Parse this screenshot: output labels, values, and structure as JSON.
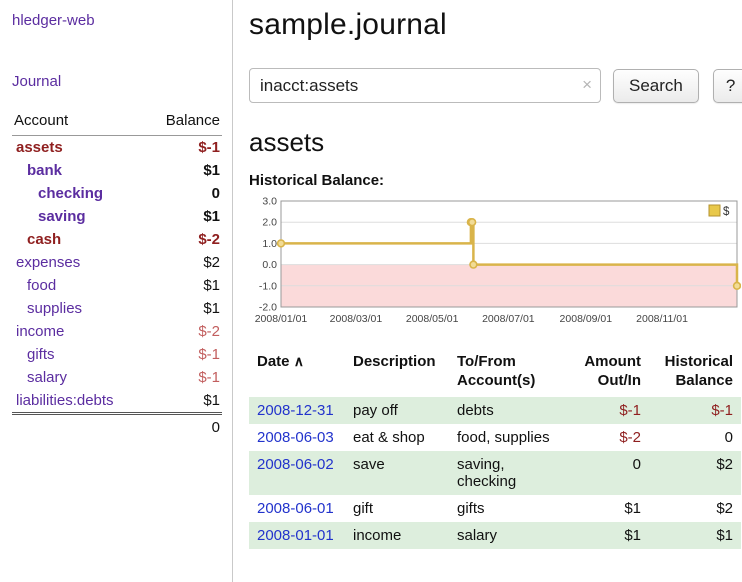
{
  "colors": {
    "purple": "#5b2da0",
    "date_blue": "#2233cc",
    "neg_dark": "#8f1f1f",
    "neg_light": "#c25e5e",
    "row_green": "#ddeedd"
  },
  "sidebar": {
    "app_title": "hledger-web",
    "nav_journal": "Journal",
    "accounts": {
      "headers": {
        "account": "Account",
        "balance": "Balance"
      },
      "rows": [
        {
          "name": "assets",
          "indent": 0,
          "bold": true,
          "name_negative": true,
          "balance": "$-1",
          "balance_style": "neg-dark"
        },
        {
          "name": "bank",
          "indent": 1,
          "bold": true,
          "name_negative": false,
          "balance": "$1",
          "balance_style": ""
        },
        {
          "name": "checking",
          "indent": 2,
          "bold": true,
          "name_negative": false,
          "balance": "0",
          "balance_style": ""
        },
        {
          "name": "saving",
          "indent": 2,
          "bold": true,
          "name_negative": false,
          "balance": "$1",
          "balance_style": ""
        },
        {
          "name": "cash",
          "indent": 1,
          "bold": true,
          "name_negative": true,
          "balance": "$-2",
          "balance_style": "neg-dark"
        },
        {
          "name": "expenses",
          "indent": 0,
          "bold": false,
          "name_negative": false,
          "balance": "$2",
          "balance_style": ""
        },
        {
          "name": "food",
          "indent": 1,
          "bold": false,
          "name_negative": false,
          "balance": "$1",
          "balance_style": ""
        },
        {
          "name": "supplies",
          "indent": 1,
          "bold": false,
          "name_negative": false,
          "balance": "$1",
          "balance_style": ""
        },
        {
          "name": "income",
          "indent": 0,
          "bold": false,
          "name_negative": false,
          "balance": "$-2",
          "balance_style": "neg-light"
        },
        {
          "name": "gifts",
          "indent": 1,
          "bold": false,
          "name_negative": false,
          "balance": "$-1",
          "balance_style": "neg-light"
        },
        {
          "name": "salary",
          "indent": 1,
          "bold": false,
          "name_negative": false,
          "balance": "$-1",
          "balance_style": "neg-light"
        },
        {
          "name": "liabilities:debts",
          "indent": 0,
          "bold": false,
          "name_negative": false,
          "balance": "$1",
          "balance_style": ""
        }
      ],
      "total": "0"
    }
  },
  "main": {
    "title": "sample.journal",
    "search": {
      "value": "inacct:assets",
      "clear_icon": "×",
      "button_label": "Search",
      "help_label": "?"
    },
    "account_heading": "assets",
    "chart_label": "Historical Balance:"
  },
  "chart_data": {
    "type": "line",
    "title": "Historical Balance",
    "legend": [
      {
        "label": "$"
      }
    ],
    "legend_position": "top-right",
    "grid": true,
    "ylim": [
      -2,
      3
    ],
    "y_ticks": [
      "3.0",
      "2.0",
      "1.0",
      "0.0",
      "-1.0",
      "-2.0"
    ],
    "x_ticks": [
      {
        "day": 0,
        "label": "2008/01/01"
      },
      {
        "day": 60,
        "label": "2008/03/01"
      },
      {
        "day": 121,
        "label": "2008/05/01"
      },
      {
        "day": 182,
        "label": "2008/07/01"
      },
      {
        "day": 244,
        "label": "2008/09/01"
      },
      {
        "day": 305,
        "label": "2008/11/01"
      }
    ],
    "x_range_days": [
      0,
      365
    ],
    "step": "after",
    "points": [
      {
        "date": "2008-01-01",
        "day": 0,
        "value": 1
      },
      {
        "date": "2008-06-01",
        "day": 152,
        "value": 2
      },
      {
        "date": "2008-06-02",
        "day": 153,
        "value": 2
      },
      {
        "date": "2008-06-03",
        "day": 154,
        "value": 0
      },
      {
        "date": "2008-12-31",
        "day": 365,
        "value": -1
      }
    ],
    "colors": {
      "line": "#d9b44a",
      "marker_fill": "#f2dc96",
      "negative_region": "#fbdada",
      "grid": "#dddddd",
      "border": "#999999",
      "tick_text": "#444444",
      "legend_fill": "#e8c84a",
      "legend_border": "#b3922f"
    }
  },
  "transactions": {
    "sort_icon": "∧",
    "headers": {
      "date": "Date",
      "description": "Description",
      "accounts": "To/From Account(s)",
      "amount": "Amount Out/In",
      "balance": "Historical Balance"
    },
    "rows": [
      {
        "date": "2008-12-31",
        "description": "pay off",
        "accounts": "debts",
        "amount": "$-1",
        "amount_negative": true,
        "balance": "$-1",
        "balance_negative": true,
        "shaded": true
      },
      {
        "date": "2008-06-03",
        "description": "eat & shop",
        "accounts": "food, supplies",
        "amount": "$-2",
        "amount_negative": true,
        "balance": "0",
        "balance_negative": false,
        "shaded": false
      },
      {
        "date": "2008-06-02",
        "description": "save",
        "accounts": "saving, checking",
        "amount": "0",
        "amount_negative": false,
        "balance": "$2",
        "balance_negative": false,
        "shaded": true
      },
      {
        "date": "2008-06-01",
        "description": "gift",
        "accounts": "gifts",
        "amount": "$1",
        "amount_negative": false,
        "balance": "$2",
        "balance_negative": false,
        "shaded": false
      },
      {
        "date": "2008-01-01",
        "description": "income",
        "accounts": "salary",
        "amount": "$1",
        "amount_negative": false,
        "balance": "$1",
        "balance_negative": false,
        "shaded": true
      }
    ]
  }
}
